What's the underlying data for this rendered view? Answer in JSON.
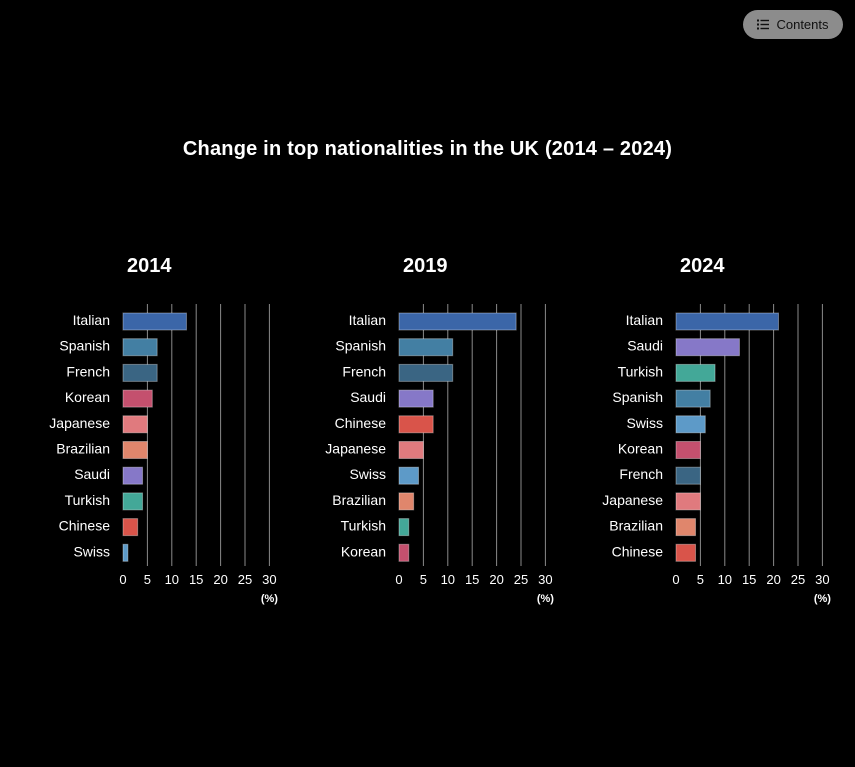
{
  "header": {
    "contents_label": "Contents",
    "page_title": "Change in top nationalities in the UK (2014 – 2024)"
  },
  "icons": {
    "contents": "list-icon"
  },
  "colors": {
    "Italian": "#3b66a8",
    "Spanish": "#437fa3",
    "French": "#3a6583",
    "Korean": "#c4506e",
    "Japanese": "#e07a7e",
    "Brazilian": "#e0866c",
    "Saudi": "#8678c8",
    "Turkish": "#43a898",
    "Chinese": "#d9544a",
    "Swiss": "#5d9ac8",
    "gridline": "#8a8a8a"
  },
  "chart_data": [
    {
      "type": "bar",
      "orientation": "horizontal",
      "title": "2014",
      "unit_label": "(%)",
      "xlim": [
        0,
        30
      ],
      "xticks": [
        "0",
        "5",
        "10",
        "15",
        "20",
        "25",
        "30"
      ],
      "categories": [
        "Italian",
        "Spanish",
        "French",
        "Korean",
        "Japanese",
        "Brazilian",
        "Saudi",
        "Turkish",
        "Chinese",
        "Swiss"
      ],
      "values": [
        13,
        7,
        7,
        6,
        5,
        5,
        4,
        4,
        3,
        1
      ]
    },
    {
      "type": "bar",
      "orientation": "horizontal",
      "title": "2019",
      "unit_label": "(%)",
      "xlim": [
        0,
        30
      ],
      "xticks": [
        "0",
        "5",
        "10",
        "15",
        "20",
        "25",
        "30"
      ],
      "categories": [
        "Italian",
        "Spanish",
        "French",
        "Saudi",
        "Chinese",
        "Japanese",
        "Swiss",
        "Brazilian",
        "Turkish",
        "Korean"
      ],
      "values": [
        24,
        11,
        11,
        7,
        7,
        5,
        4,
        3,
        2,
        2
      ]
    },
    {
      "type": "bar",
      "orientation": "horizontal",
      "title": "2024",
      "unit_label": "(%)",
      "xlim": [
        0,
        30
      ],
      "xticks": [
        "0",
        "5",
        "10",
        "15",
        "20",
        "25",
        "30"
      ],
      "categories": [
        "Italian",
        "Saudi",
        "Turkish",
        "Spanish",
        "Swiss",
        "Korean",
        "French",
        "Japanese",
        "Brazilian",
        "Chinese"
      ],
      "values": [
        21,
        13,
        8,
        7,
        6,
        5,
        5,
        5,
        4,
        4
      ]
    }
  ]
}
